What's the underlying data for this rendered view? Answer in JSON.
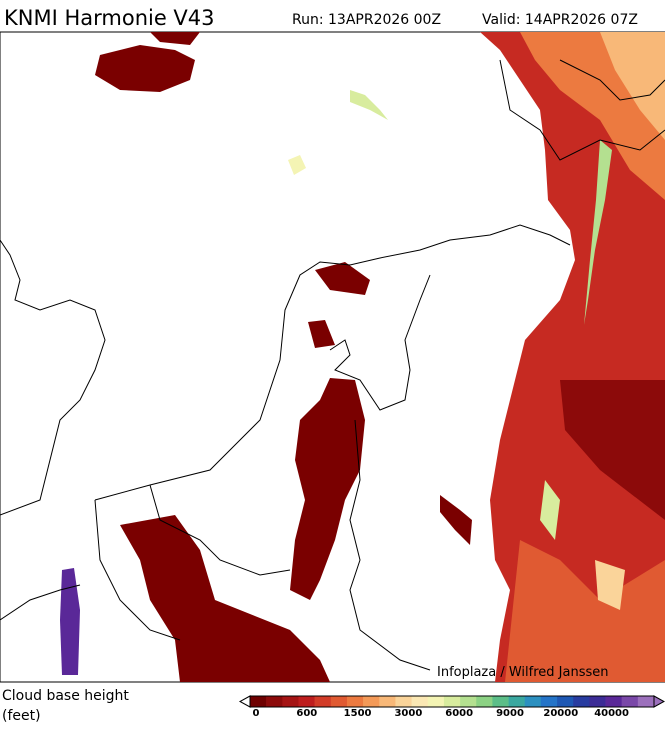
{
  "header": {
    "title": "KNMI Harmonie V43",
    "run": "Run: 13APR2026 00Z",
    "valid": "Valid: 14APR2026 07Z"
  },
  "map": {
    "credit": "Infoplaza / Wilfred Janssen"
  },
  "legend": {
    "title_lines": [
      "Cloud base height",
      "(feet)"
    ],
    "labels": [
      "0",
      "600",
      "1500",
      "3000",
      "6000",
      "9000",
      "20000",
      "40000"
    ],
    "colors": [
      "#6e0000",
      "#8c0a0a",
      "#a51414",
      "#be1e1e",
      "#d23c28",
      "#e05a32",
      "#ec7a40",
      "#f49a58",
      "#f8b878",
      "#fad49a",
      "#fbe8b4",
      "#f4f4b4",
      "#d8ec9e",
      "#b4e090",
      "#8cd284",
      "#5cbe88",
      "#3aa8a0",
      "#2c90c0",
      "#2474c8",
      "#1e58b4",
      "#283ca0",
      "#3c2c96",
      "#5a2898",
      "#7a48a8",
      "#9c70bc"
    ]
  }
}
